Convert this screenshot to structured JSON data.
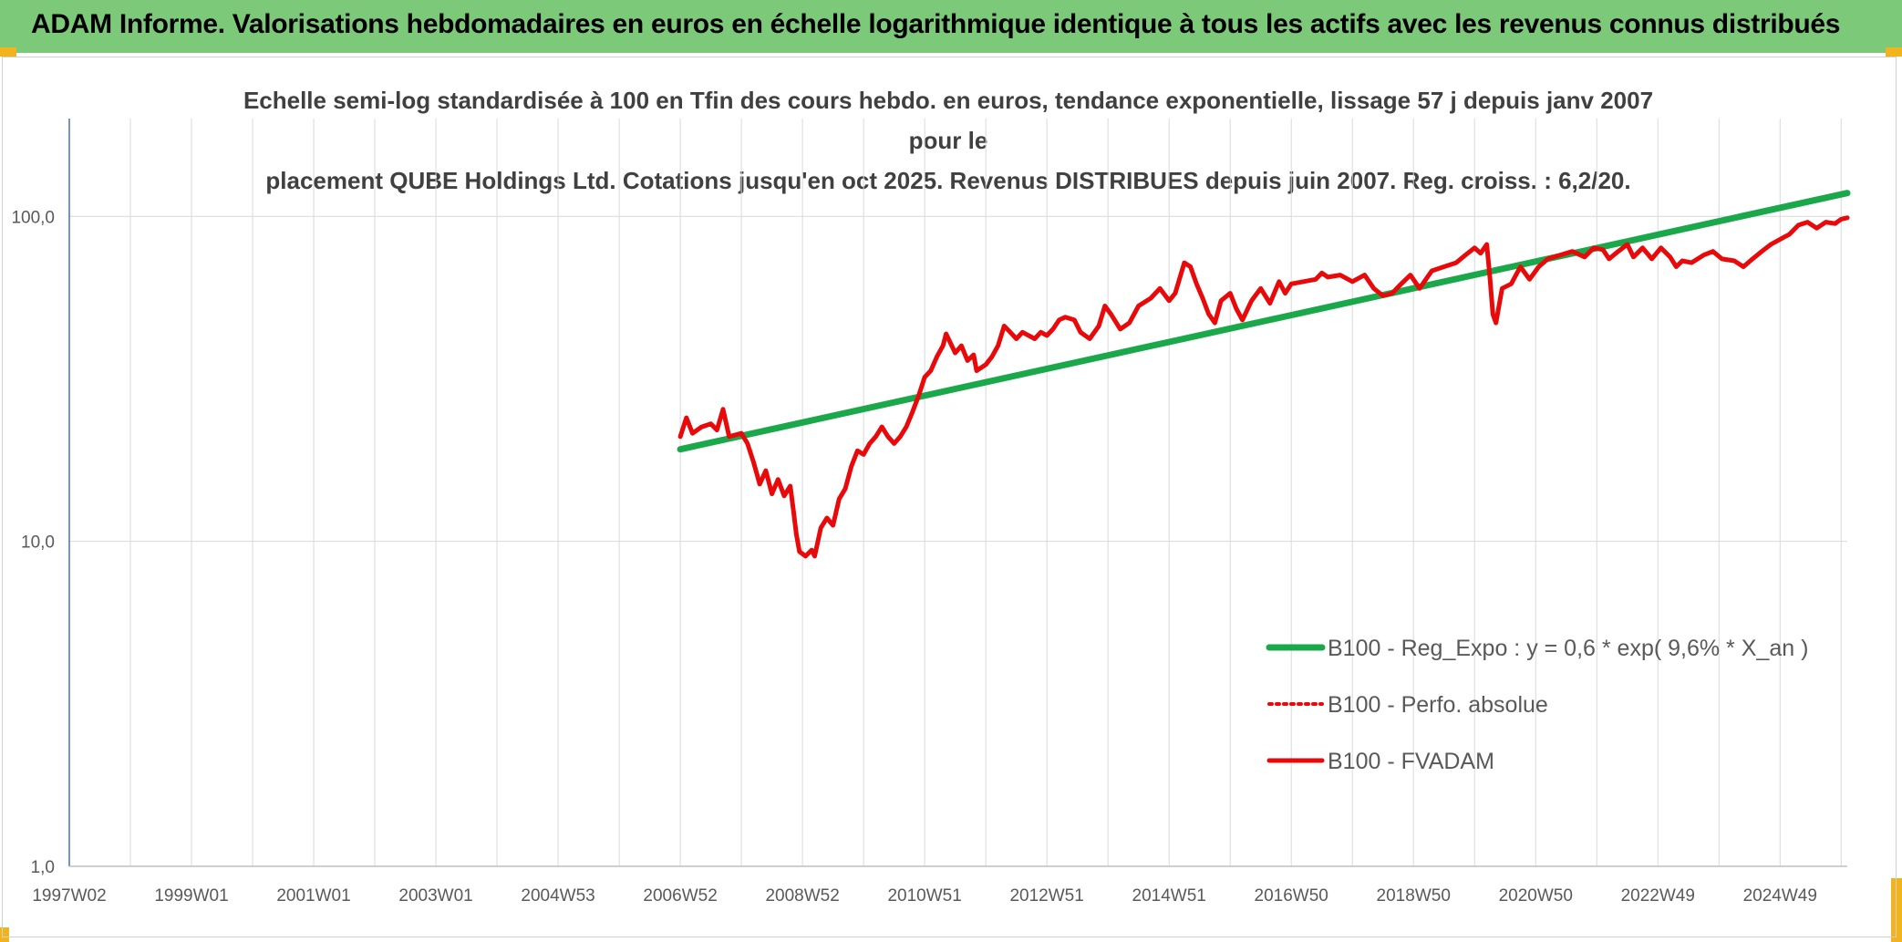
{
  "header": {
    "title": "ADAM Informe. Valorisations hebdomadaires en euros en échelle logarithmique identique à tous les actifs avec les revenus connus distribués"
  },
  "colors": {
    "banner": "#7dc97a",
    "corner": "#f2b41c",
    "reg_line": "#1aa84a",
    "fvadam_line": "#e80a0a",
    "grid": "#d9d9d9"
  },
  "chart_data": {
    "type": "line",
    "title_line1": "Echelle semi-log standardisée à 100 en Tfin des cours hebdo. en euros, tendance exponentielle, lissage 57 j depuis janv 2007 pour le",
    "title_line2": "placement QUBE Holdings Ltd. Cotations jusqu'en oct 2025. Revenus DISTRIBUES depuis juin 2007. Reg. croiss. : 6,2/20.",
    "yscale": "log",
    "ylim": [
      1,
      200
    ],
    "xlim": [
      1997.0,
      2026.1
    ],
    "y_ticks": [
      {
        "value": 1,
        "label": "1,0"
      },
      {
        "value": 10,
        "label": "10,0"
      },
      {
        "value": 100,
        "label": "100,0"
      }
    ],
    "x_ticks": [
      {
        "value": 1997.0,
        "label": "1997W02"
      },
      {
        "value": 1999.0,
        "label": "1999W01"
      },
      {
        "value": 2001.0,
        "label": "2001W01"
      },
      {
        "value": 2003.0,
        "label": "2003W01"
      },
      {
        "value": 2005.0,
        "label": "2004W53"
      },
      {
        "value": 2007.0,
        "label": "2006W52"
      },
      {
        "value": 2009.0,
        "label": "2008W52"
      },
      {
        "value": 2011.0,
        "label": "2010W51"
      },
      {
        "value": 2013.0,
        "label": "2012W51"
      },
      {
        "value": 2015.0,
        "label": "2014W51"
      },
      {
        "value": 2017.0,
        "label": "2016W50"
      },
      {
        "value": 2019.0,
        "label": "2018W50"
      },
      {
        "value": 2021.0,
        "label": "2020W50"
      },
      {
        "value": 2023.0,
        "label": "2022W49"
      },
      {
        "value": 2025.0,
        "label": "2024W49"
      }
    ],
    "minor_gridlines_x": [
      1998.0,
      2000.0,
      2002.0,
      2004.0,
      2006.0,
      2008.0,
      2010.0,
      2012.0,
      2014.0,
      2016.0,
      2018.0,
      2020.0,
      2022.0,
      2024.0,
      2026.0
    ],
    "legend_position": "bottom-right",
    "series": [
      {
        "name": "B100 - Reg_Expo : y = 0,6 * exp( 9,6% *  X_an )",
        "style": "solid-thick",
        "color": "#1aa84a",
        "points": [
          [
            2007.0,
            19.2
          ],
          [
            2026.1,
            118.0
          ]
        ]
      },
      {
        "name": "B100 - Perfo. absolue",
        "style": "dotted",
        "color": "#e80a0a",
        "points": []
      },
      {
        "name": "B100 - FVADAM",
        "style": "solid",
        "color": "#e80a0a",
        "points": [
          [
            2007.0,
            21
          ],
          [
            2007.1,
            24
          ],
          [
            2007.2,
            21.5
          ],
          [
            2007.35,
            22.5
          ],
          [
            2007.5,
            23
          ],
          [
            2007.6,
            22
          ],
          [
            2007.7,
            25.5
          ],
          [
            2007.8,
            21
          ],
          [
            2008.0,
            21.5
          ],
          [
            2008.1,
            20
          ],
          [
            2008.2,
            17.5
          ],
          [
            2008.3,
            15
          ],
          [
            2008.4,
            16.5
          ],
          [
            2008.5,
            14
          ],
          [
            2008.6,
            15.5
          ],
          [
            2008.7,
            13.8
          ],
          [
            2008.8,
            14.8
          ],
          [
            2008.85,
            12.5
          ],
          [
            2008.9,
            10.5
          ],
          [
            2008.95,
            9.3
          ],
          [
            2009.05,
            9.0
          ],
          [
            2009.15,
            9.4
          ],
          [
            2009.2,
            9.0
          ],
          [
            2009.3,
            11
          ],
          [
            2009.4,
            11.8
          ],
          [
            2009.5,
            11.2
          ],
          [
            2009.6,
            13.5
          ],
          [
            2009.7,
            14.5
          ],
          [
            2009.8,
            17
          ],
          [
            2009.9,
            19
          ],
          [
            2010.0,
            18.5
          ],
          [
            2010.1,
            20
          ],
          [
            2010.2,
            21
          ],
          [
            2010.3,
            22.5
          ],
          [
            2010.4,
            21
          ],
          [
            2010.5,
            20
          ],
          [
            2010.6,
            21
          ],
          [
            2010.7,
            22.5
          ],
          [
            2010.8,
            25
          ],
          [
            2010.9,
            28
          ],
          [
            2011.0,
            32
          ],
          [
            2011.1,
            33.5
          ],
          [
            2011.2,
            37
          ],
          [
            2011.3,
            40
          ],
          [
            2011.35,
            43.5
          ],
          [
            2011.5,
            38
          ],
          [
            2011.6,
            40
          ],
          [
            2011.7,
            36
          ],
          [
            2011.8,
            37.5
          ],
          [
            2011.85,
            33.5
          ],
          [
            2012.0,
            35
          ],
          [
            2012.1,
            37
          ],
          [
            2012.2,
            40
          ],
          [
            2012.3,
            46
          ],
          [
            2012.4,
            44
          ],
          [
            2012.5,
            42
          ],
          [
            2012.6,
            44
          ],
          [
            2012.8,
            42
          ],
          [
            2012.9,
            44
          ],
          [
            2013.0,
            43
          ],
          [
            2013.1,
            45
          ],
          [
            2013.2,
            48
          ],
          [
            2013.3,
            49
          ],
          [
            2013.45,
            48
          ],
          [
            2013.55,
            44
          ],
          [
            2013.7,
            42
          ],
          [
            2013.85,
            46
          ],
          [
            2013.95,
            53
          ],
          [
            2014.05,
            50
          ],
          [
            2014.2,
            45
          ],
          [
            2014.35,
            47
          ],
          [
            2014.5,
            53
          ],
          [
            2014.7,
            56
          ],
          [
            2014.85,
            60
          ],
          [
            2015.0,
            55
          ],
          [
            2015.1,
            58
          ],
          [
            2015.25,
            72
          ],
          [
            2015.35,
            70
          ],
          [
            2015.45,
            62
          ],
          [
            2015.55,
            56
          ],
          [
            2015.65,
            50
          ],
          [
            2015.75,
            47
          ],
          [
            2015.85,
            55
          ],
          [
            2016.0,
            58
          ],
          [
            2016.1,
            52
          ],
          [
            2016.2,
            48
          ],
          [
            2016.35,
            55
          ],
          [
            2016.5,
            60
          ],
          [
            2016.65,
            54
          ],
          [
            2016.8,
            63
          ],
          [
            2016.9,
            58
          ],
          [
            2017.0,
            62
          ],
          [
            2017.2,
            63
          ],
          [
            2017.4,
            64
          ],
          [
            2017.5,
            67
          ],
          [
            2017.6,
            65
          ],
          [
            2017.8,
            66
          ],
          [
            2018.0,
            63
          ],
          [
            2018.2,
            66
          ],
          [
            2018.35,
            60
          ],
          [
            2018.5,
            57
          ],
          [
            2018.65,
            58
          ],
          [
            2018.8,
            62
          ],
          [
            2018.95,
            66
          ],
          [
            2019.1,
            60
          ],
          [
            2019.3,
            68
          ],
          [
            2019.5,
            70
          ],
          [
            2019.7,
            72
          ],
          [
            2019.85,
            76
          ],
          [
            2020.0,
            80
          ],
          [
            2020.1,
            77
          ],
          [
            2020.2,
            82
          ],
          [
            2020.25,
            65
          ],
          [
            2020.3,
            50
          ],
          [
            2020.35,
            47
          ],
          [
            2020.45,
            60
          ],
          [
            2020.6,
            62
          ],
          [
            2020.75,
            70
          ],
          [
            2020.9,
            64
          ],
          [
            2021.05,
            70
          ],
          [
            2021.2,
            74
          ],
          [
            2021.4,
            76
          ],
          [
            2021.6,
            78
          ],
          [
            2021.8,
            75
          ],
          [
            2021.95,
            80
          ],
          [
            2022.1,
            79
          ],
          [
            2022.2,
            74
          ],
          [
            2022.35,
            78
          ],
          [
            2022.5,
            82
          ],
          [
            2022.6,
            75
          ],
          [
            2022.75,
            80
          ],
          [
            2022.9,
            74
          ],
          [
            2023.05,
            80
          ],
          [
            2023.2,
            75
          ],
          [
            2023.3,
            70
          ],
          [
            2023.4,
            73
          ],
          [
            2023.55,
            72
          ],
          [
            2023.75,
            76
          ],
          [
            2023.9,
            78
          ],
          [
            2024.05,
            74
          ],
          [
            2024.25,
            73
          ],
          [
            2024.4,
            70
          ],
          [
            2024.55,
            74
          ],
          [
            2024.7,
            78
          ],
          [
            2024.85,
            82
          ],
          [
            2025.0,
            85
          ],
          [
            2025.15,
            88
          ],
          [
            2025.3,
            94
          ],
          [
            2025.45,
            96
          ],
          [
            2025.6,
            92
          ],
          [
            2025.75,
            96
          ],
          [
            2025.9,
            95
          ],
          [
            2026.0,
            98
          ],
          [
            2026.1,
            99
          ]
        ]
      }
    ]
  }
}
